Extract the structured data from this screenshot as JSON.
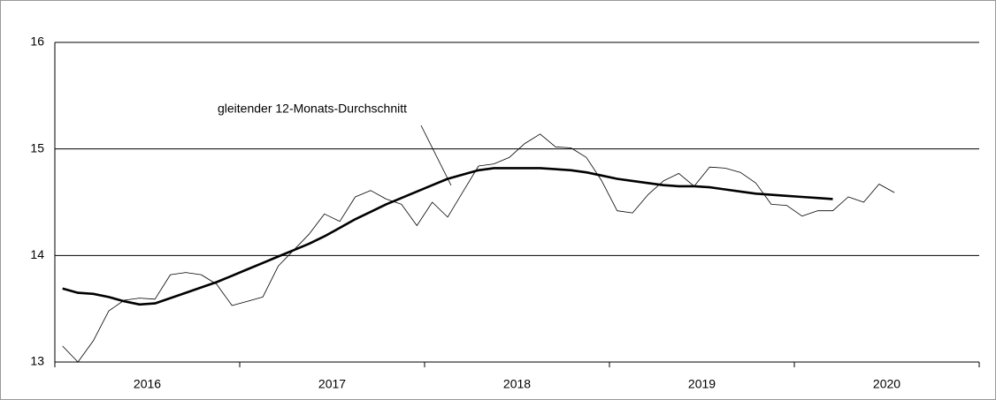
{
  "chart_data": {
    "type": "line",
    "annotation": "gleitender 12-Monats-Durchschnitt",
    "year_labels": [
      "2016",
      "2017",
      "2018",
      "2019",
      "2020"
    ],
    "months_per_year": 12,
    "ylim": [
      13,
      16
    ],
    "yticks": [
      13,
      14,
      15,
      16
    ],
    "grid": true,
    "series": [
      {
        "color": "#000000",
        "width": 0.8,
        "values": [
          13.15,
          13.0,
          13.2,
          13.48,
          13.58,
          13.6,
          13.59,
          13.82,
          13.84,
          13.82,
          13.73,
          13.53,
          13.57,
          13.61,
          13.9,
          14.05,
          14.2,
          14.39,
          14.32,
          14.55,
          14.61,
          14.53,
          14.48,
          14.28,
          14.5,
          14.36,
          14.6,
          14.84,
          14.86,
          14.92,
          15.05,
          15.14,
          15.02,
          15.01,
          14.92,
          14.7,
          14.42,
          14.4,
          14.57,
          14.7,
          14.77,
          14.65,
          14.83,
          14.82,
          14.78,
          14.68,
          14.48,
          14.47,
          14.37,
          14.42,
          14.42,
          14.55,
          14.5,
          14.67,
          14.59
        ]
      },
      {
        "color": "#000000",
        "width": 2.6,
        "values": [
          13.69,
          13.65,
          13.64,
          13.61,
          13.57,
          13.54,
          13.55,
          13.6,
          13.65,
          13.7,
          13.75,
          13.81,
          13.87,
          13.93,
          13.99,
          14.05,
          14.11,
          14.18,
          14.26,
          14.34,
          14.41,
          14.48,
          14.54,
          14.6,
          14.66,
          14.72,
          14.76,
          14.8,
          14.82,
          14.82,
          14.82,
          14.82,
          14.81,
          14.8,
          14.78,
          14.75,
          14.72,
          14.7,
          14.68,
          14.66,
          14.65,
          14.65,
          14.64,
          14.62,
          14.6,
          14.58,
          14.57,
          14.56,
          14.55,
          14.54,
          14.53,
          null,
          null,
          null,
          null
        ]
      }
    ]
  }
}
